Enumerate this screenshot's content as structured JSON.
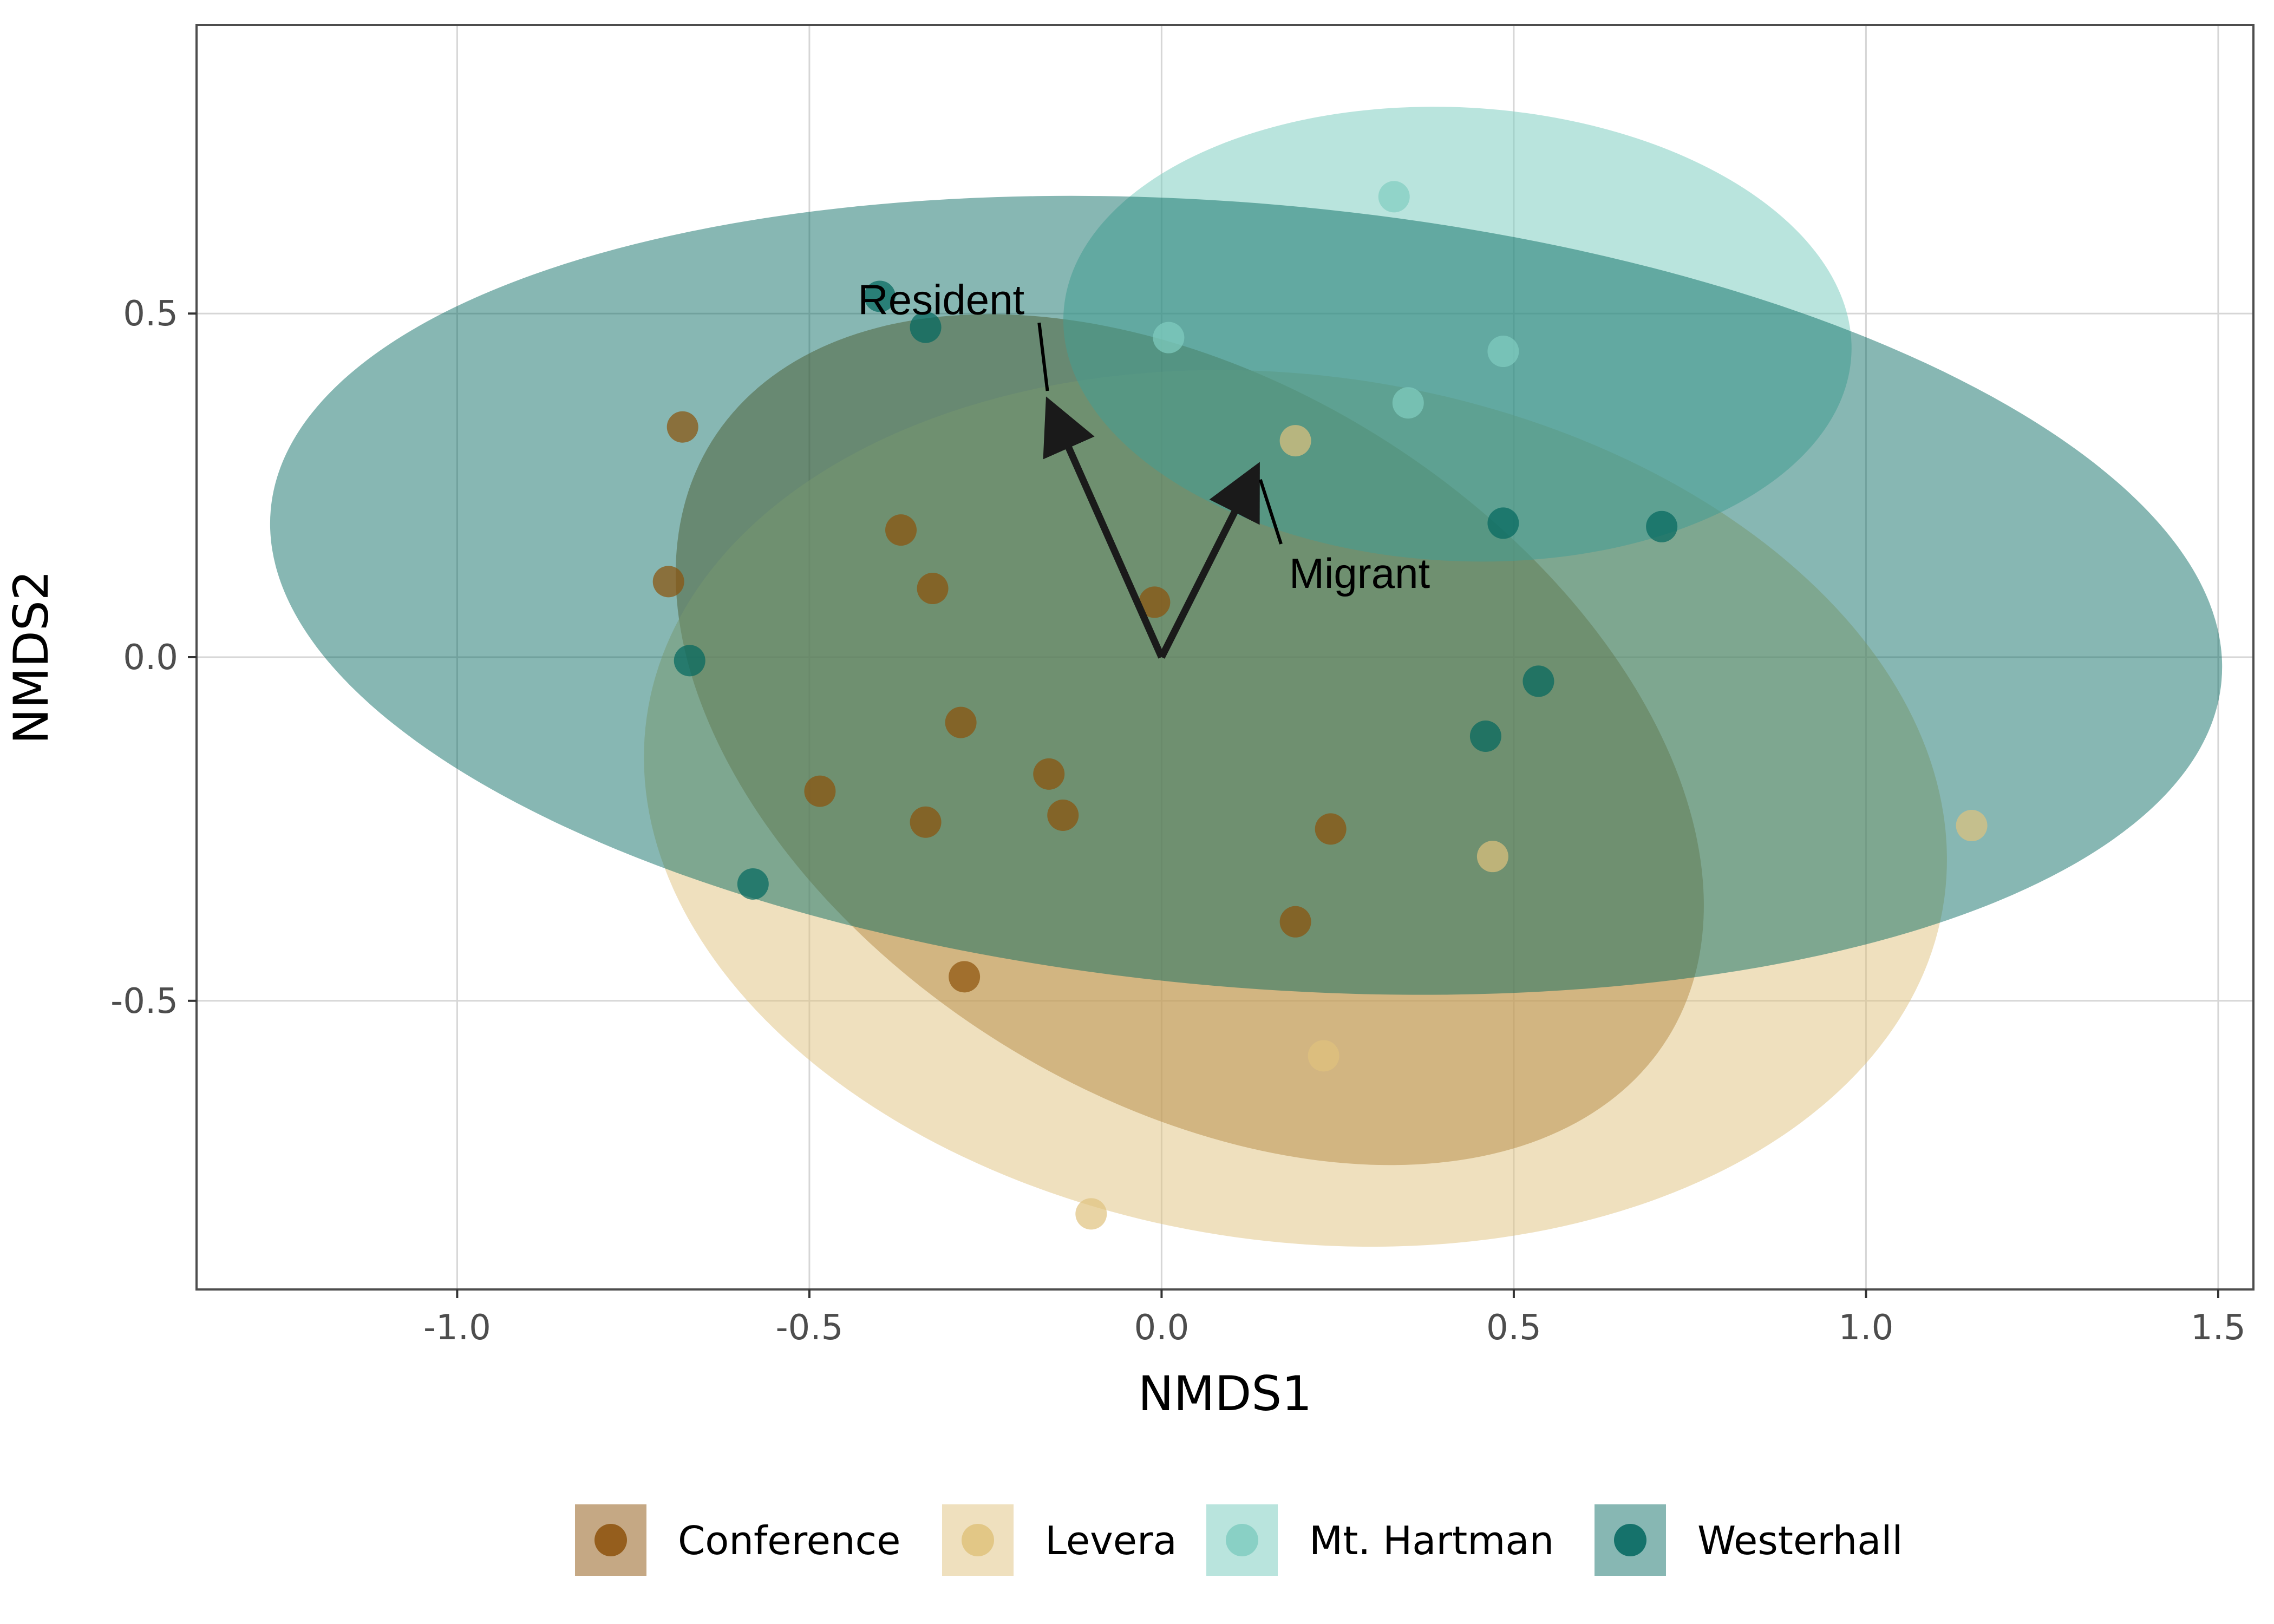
{
  "chart_data": {
    "type": "scatter",
    "title": "",
    "xlabel": "NMDS1",
    "ylabel": "NMDS2",
    "xlim": [
      -1.37,
      1.55
    ],
    "ylim": [
      -0.92,
      0.92
    ],
    "xticks": [
      -1.0,
      -0.5,
      0.0,
      0.5,
      1.0,
      1.5
    ],
    "xtick_labels": [
      "-1.0",
      "-0.5",
      "0.0",
      "0.5",
      "1.0",
      "1.5"
    ],
    "yticks": [
      -0.5,
      0.0,
      0.5
    ],
    "ytick_labels": [
      "-0.5",
      "0.0",
      "0.5"
    ],
    "grid": true,
    "legend_position": "bottom",
    "series": [
      {
        "name": "Conference",
        "color": "#8c510a",
        "ellipse": {
          "cx": 0.04,
          "cy": -0.12,
          "rx": 0.8,
          "ry": 0.52,
          "angle_deg": -32
        },
        "points": [
          {
            "x": -0.68,
            "y": 0.335
          },
          {
            "x": -0.37,
            "y": 0.185
          },
          {
            "x": -0.7,
            "y": 0.11
          },
          {
            "x": -0.325,
            "y": 0.1
          },
          {
            "x": -0.01,
            "y": 0.08
          },
          {
            "x": -0.285,
            "y": -0.095
          },
          {
            "x": -0.16,
            "y": -0.17
          },
          {
            "x": -0.14,
            "y": -0.23
          },
          {
            "x": -0.485,
            "y": -0.195
          },
          {
            "x": -0.335,
            "y": -0.24
          },
          {
            "x": 0.24,
            "y": -0.25
          },
          {
            "x": 0.19,
            "y": -0.385
          },
          {
            "x": -0.28,
            "y": -0.465
          }
        ]
      },
      {
        "name": "Levera",
        "color": "#dfc27d",
        "ellipse": {
          "cx": 0.19,
          "cy": -0.22,
          "rx": 0.93,
          "ry": 0.63,
          "angle_deg": -8
        },
        "points": [
          {
            "x": 0.19,
            "y": 0.315
          },
          {
            "x": 0.47,
            "y": -0.29
          },
          {
            "x": 0.23,
            "y": -0.58
          },
          {
            "x": -0.1,
            "y": -0.81
          },
          {
            "x": 1.15,
            "y": -0.245
          }
        ]
      },
      {
        "name": "Mt. Hartman",
        "color": "#80cdc1",
        "ellipse": {
          "cx": 0.42,
          "cy": 0.47,
          "rx": 0.56,
          "ry": 0.33,
          "angle_deg": -3
        },
        "points": [
          {
            "x": 0.33,
            "y": 0.67
          },
          {
            "x": 0.01,
            "y": 0.465
          },
          {
            "x": 0.485,
            "y": 0.445
          },
          {
            "x": 0.35,
            "y": 0.37
          }
        ]
      },
      {
        "name": "Westerhall",
        "color": "#01665e",
        "ellipse": {
          "cx": 0.12,
          "cy": 0.09,
          "rx": 1.39,
          "ry": 0.57,
          "angle_deg": -5
        },
        "points": [
          {
            "x": -0.4,
            "y": 0.525
          },
          {
            "x": -0.335,
            "y": 0.48
          },
          {
            "x": 0.485,
            "y": 0.195
          },
          {
            "x": 0.71,
            "y": 0.19
          },
          {
            "x": -0.67,
            "y": -0.005
          },
          {
            "x": 0.535,
            "y": -0.035
          },
          {
            "x": 0.46,
            "y": -0.115
          },
          {
            "x": -0.58,
            "y": -0.33
          }
        ]
      }
    ],
    "vectors": [
      {
        "name": "Resident",
        "x": -0.16,
        "y": 0.37
      },
      {
        "name": "Migrant",
        "x": 0.135,
        "y": 0.275
      }
    ]
  }
}
